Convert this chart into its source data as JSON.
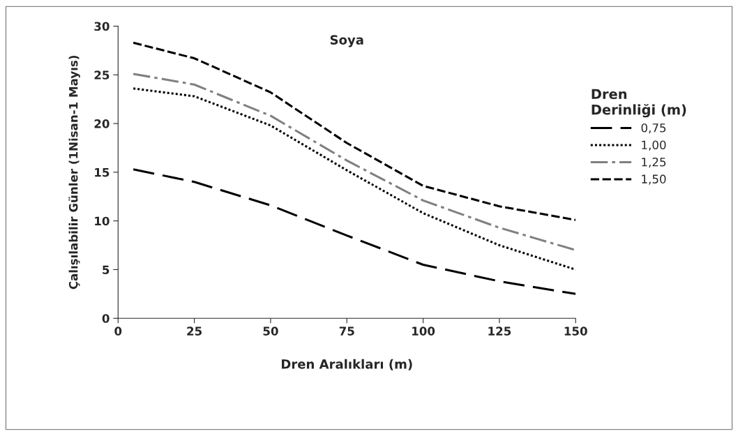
{
  "chart_data": {
    "type": "line",
    "title": "Soya",
    "xlabel": "Dren Aralıkları (m)",
    "ylabel": "Çalışılabilir Günler (1Nisan-1 Mayıs)",
    "legend_title": "Dren\nDerinliği (m)",
    "legend": "right",
    "grid": false,
    "marker": "none",
    "x": [
      5,
      25,
      50,
      75,
      100,
      125,
      150
    ],
    "xlim": [
      0,
      150
    ],
    "xticks": [
      0,
      25,
      50,
      75,
      100,
      125,
      150
    ],
    "ylim": [
      0,
      30
    ],
    "yticks": [
      0,
      5,
      10,
      15,
      20,
      25,
      30
    ],
    "series": [
      {
        "name": "0,75",
        "color": "#000000",
        "line_style": "longdash",
        "values": [
          15.3,
          14.0,
          11.6,
          8.5,
          5.5,
          3.8,
          2.5
        ]
      },
      {
        "name": "1,00",
        "color": "#000000",
        "line_style": "dotted",
        "values": [
          23.6,
          22.8,
          19.8,
          15.2,
          10.8,
          7.5,
          5.0
        ]
      },
      {
        "name": "1,25",
        "color": "#808080",
        "line_style": "dashdot",
        "values": [
          25.1,
          24.0,
          20.8,
          16.2,
          12.1,
          9.3,
          7.0
        ]
      },
      {
        "name": "1,50",
        "color": "#000000",
        "line_style": "dashed",
        "values": [
          28.3,
          26.7,
          23.2,
          18.0,
          13.6,
          11.5,
          10.1
        ]
      }
    ]
  }
}
